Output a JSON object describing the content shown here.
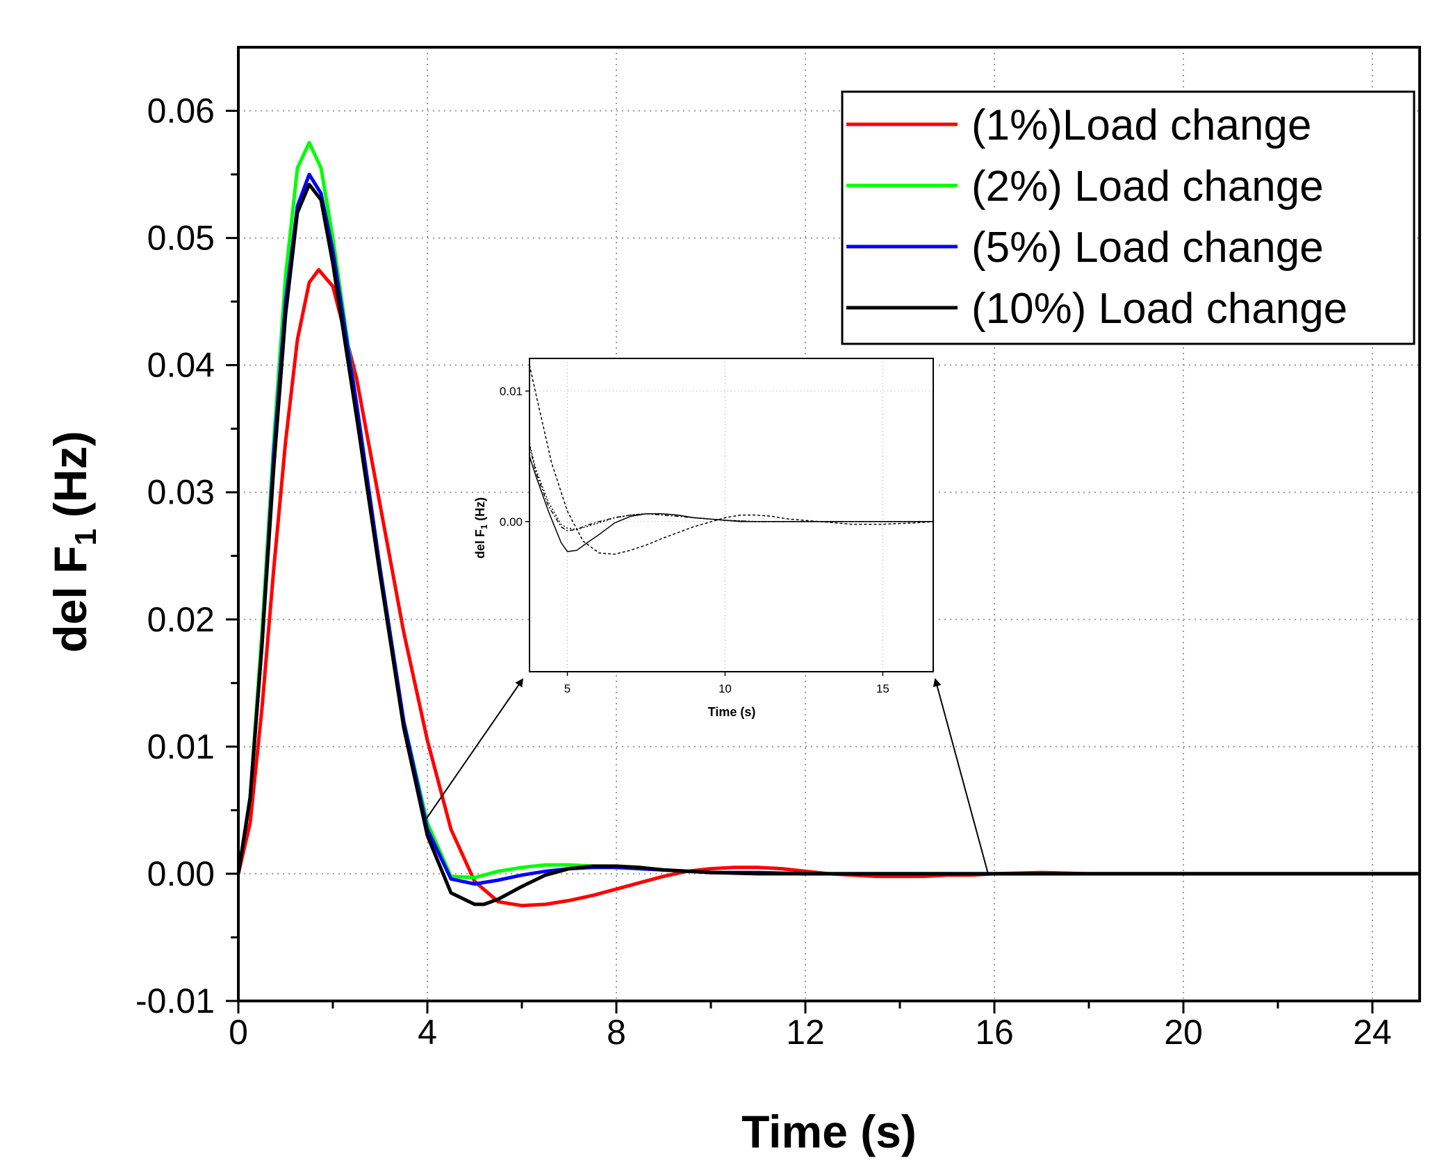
{
  "chart_data": [
    {
      "id": "main",
      "type": "line",
      "title": "",
      "xlabel": "Time (s)",
      "ylabel": "del F",
      "ylabel_subscript": "1",
      "ylabel_units": "(Hz)",
      "xlim": [
        0,
        25
      ],
      "ylim": [
        -0.01,
        0.065
      ],
      "xticks": [
        0,
        4,
        8,
        12,
        16,
        20,
        24
      ],
      "xtick_labels": [
        "0",
        "4",
        "8",
        "12",
        "16",
        "20",
        "24"
      ],
      "yticks": [
        -0.01,
        0.0,
        0.01,
        0.02,
        0.03,
        0.04,
        0.05,
        0.06
      ],
      "ytick_labels": [
        "-0.01",
        "0.00",
        "0.01",
        "0.02",
        "0.03",
        "0.04",
        "0.05",
        "0.06"
      ],
      "grid": true,
      "legend_position": "top-right",
      "series": [
        {
          "name": "(1%)Load change",
          "color": "#ff0000",
          "x": [
            0,
            0.25,
            0.5,
            0.75,
            1.0,
            1.25,
            1.5,
            1.7,
            2.0,
            2.5,
            3.0,
            3.5,
            4.0,
            4.5,
            5.0,
            5.5,
            6.0,
            6.5,
            7.0,
            7.5,
            8.0,
            8.5,
            9.0,
            9.5,
            10.0,
            10.5,
            11.0,
            11.5,
            12.0,
            12.5,
            13.0,
            13.5,
            14.0,
            14.5,
            15.0,
            15.5,
            16.0,
            17.0,
            18.0,
            19.0,
            20.0,
            25.0
          ],
          "y": [
            0,
            0.004,
            0.013,
            0.024,
            0.034,
            0.042,
            0.0465,
            0.0475,
            0.0462,
            0.039,
            0.029,
            0.019,
            0.0105,
            0.0035,
            -0.0006,
            -0.0022,
            -0.0025,
            -0.0024,
            -0.0021,
            -0.0017,
            -0.0012,
            -0.0007,
            -0.0002,
            0.0002,
            0.0004,
            0.0005,
            0.0005,
            0.0004,
            0.0002,
            0.0,
            -0.0001,
            -0.0002,
            -0.0002,
            -0.0002,
            -0.0001,
            -0.0001,
            0.0,
            0.0001,
            0.0,
            0.0,
            0.0,
            0.0
          ]
        },
        {
          "name": "(2%) Load change",
          "color": "#00ff00",
          "x": [
            0,
            0.25,
            0.5,
            0.75,
            1.0,
            1.25,
            1.5,
            1.75,
            2.0,
            2.5,
            3.0,
            3.5,
            4.0,
            4.5,
            5.0,
            5.5,
            6.0,
            6.5,
            7.0,
            7.5,
            8.0,
            8.5,
            9.0,
            9.5,
            10.0,
            11.0,
            12.0,
            13.0,
            14.0,
            16.0,
            20.0,
            25.0
          ],
          "y": [
            0,
            0.006,
            0.019,
            0.034,
            0.047,
            0.0555,
            0.0575,
            0.0555,
            0.05,
            0.037,
            0.024,
            0.012,
            0.004,
            -0.0002,
            -0.0003,
            0.0002,
            0.0005,
            0.0007,
            0.0007,
            0.0006,
            0.0005,
            0.0004,
            0.0003,
            0.0002,
            0.0001,
            0.0001,
            0.0,
            0.0,
            0.0,
            0.0,
            0.0,
            0.0
          ]
        },
        {
          "name": "(5%) Load change",
          "color": "#0000ff",
          "x": [
            0,
            0.25,
            0.5,
            0.75,
            1.0,
            1.25,
            1.5,
            1.75,
            2.0,
            2.5,
            3.0,
            3.5,
            4.0,
            4.5,
            5.0,
            5.5,
            6.0,
            6.5,
            7.0,
            7.5,
            8.0,
            8.5,
            9.0,
            9.5,
            10.0,
            11.0,
            12.0,
            13.0,
            14.0,
            16.0,
            20.0,
            25.0
          ],
          "y": [
            0,
            0.006,
            0.018,
            0.033,
            0.045,
            0.0525,
            0.055,
            0.0535,
            0.049,
            0.037,
            0.024,
            0.012,
            0.0035,
            -0.0004,
            -0.0008,
            -0.0005,
            -0.0001,
            0.0002,
            0.0004,
            0.0005,
            0.0005,
            0.0004,
            0.0003,
            0.0002,
            0.0001,
            0.0001,
            0.0,
            0.0,
            0.0,
            0.0,
            0.0,
            0.0
          ]
        },
        {
          "name": "(10%) Load change",
          "color": "#000000",
          "x": [
            0,
            0.25,
            0.5,
            0.75,
            1.0,
            1.25,
            1.5,
            1.75,
            2.0,
            2.5,
            3.0,
            3.5,
            4.0,
            4.5,
            5.0,
            5.2,
            5.5,
            6.0,
            6.5,
            7.0,
            7.5,
            7.8,
            8.0,
            8.5,
            9.0,
            9.5,
            10.0,
            11.0,
            12.0,
            13.0,
            14.0,
            16.0,
            20.0,
            25.0
          ],
          "y": [
            0,
            0.006,
            0.018,
            0.032,
            0.044,
            0.052,
            0.0542,
            0.053,
            0.048,
            0.036,
            0.0235,
            0.0115,
            0.003,
            -0.0015,
            -0.0024,
            -0.0024,
            -0.002,
            -0.001,
            -0.0001,
            0.0004,
            0.0006,
            0.0006,
            0.0006,
            0.0005,
            0.0003,
            0.0002,
            0.0001,
            0.0,
            0.0,
            0.0,
            0.0,
            0.0,
            0.0,
            0.0
          ]
        }
      ]
    },
    {
      "id": "inset",
      "type": "line",
      "title": "",
      "xlabel": "Time (s)",
      "ylabel": "del F",
      "ylabel_subscript": "1",
      "ylabel_units": "(Hz)",
      "xlim": [
        3.8,
        16.6
      ],
      "ylim": [
        -0.0115,
        0.0125
      ],
      "xticks": [
        5,
        10,
        15
      ],
      "xtick_labels": [
        "5",
        "10",
        "15"
      ],
      "yticks": [
        0.0,
        0.01
      ],
      "ytick_labels": [
        "0.00",
        "0.01"
      ],
      "grid": true,
      "series": [
        {
          "name": "solid",
          "dash": "solid",
          "x": [
            3.8,
            4.0,
            4.4,
            4.8,
            5.0,
            5.3,
            5.7,
            6.0,
            6.5,
            7.0,
            7.5,
            8.0,
            8.5,
            9.0,
            9.5,
            10.0,
            10.5,
            11.0,
            12.0,
            13.0,
            14.0,
            15.0,
            16.6
          ],
          "y": [
            0.005,
            0.0035,
            0.0008,
            -0.0016,
            -0.0023,
            -0.0022,
            -0.0015,
            -0.001,
            -0.0001,
            0.0004,
            0.0006,
            0.0006,
            0.0005,
            0.0003,
            0.0002,
            0.0001,
            0.0,
            0.0,
            0.0,
            0.0,
            0.0,
            0.0,
            0.0
          ]
        },
        {
          "name": "dashed",
          "dash": "4 3",
          "x": [
            3.8,
            4.0,
            4.5,
            5.0,
            5.5,
            6.0,
            6.5,
            7.0,
            7.5,
            8.0,
            9.0,
            10.0,
            10.5,
            11.0,
            11.5,
            12.0,
            13.0,
            14.0,
            15.0,
            16.0,
            16.6
          ],
          "y": [
            0.012,
            0.0098,
            0.0045,
            0.0008,
            -0.0015,
            -0.0024,
            -0.0025,
            -0.0022,
            -0.0018,
            -0.0013,
            -0.0004,
            0.0003,
            0.0005,
            0.0005,
            0.0004,
            0.0002,
            0.0,
            -0.0002,
            -0.0002,
            -0.0001,
            0.0
          ]
        },
        {
          "name": "dotted",
          "dash": "2 3",
          "x": [
            3.8,
            4.0,
            4.4,
            4.8,
            5.0,
            5.3,
            5.6,
            6.0,
            6.5,
            7.0,
            7.5,
            8.0,
            8.5,
            9.0,
            10.0,
            11.0,
            12.0,
            14.0,
            16.6
          ],
          "y": [
            0.006,
            0.004,
            0.0015,
            -0.0002,
            -0.0005,
            -0.0006,
            -0.0004,
            -0.0001,
            0.0003,
            0.0005,
            0.0006,
            0.0006,
            0.0005,
            0.0003,
            0.0001,
            0.0,
            0.0,
            0.0,
            0.0
          ]
        },
        {
          "name": "dash-dot",
          "dash": "6 3 2 3",
          "x": [
            3.8,
            4.0,
            4.4,
            4.8,
            5.0,
            5.3,
            5.6,
            6.0,
            6.5,
            7.0,
            7.5,
            8.0,
            8.5,
            9.0,
            10.0,
            11.0,
            12.0,
            14.0,
            16.6
          ],
          "y": [
            0.0058,
            0.0038,
            0.0012,
            -0.0004,
            -0.0007,
            -0.0006,
            -0.0003,
            0.0,
            0.0003,
            0.0005,
            0.0006,
            0.0005,
            0.0004,
            0.0003,
            0.0001,
            0.0,
            0.0,
            0.0,
            0.0
          ]
        }
      ]
    }
  ]
}
